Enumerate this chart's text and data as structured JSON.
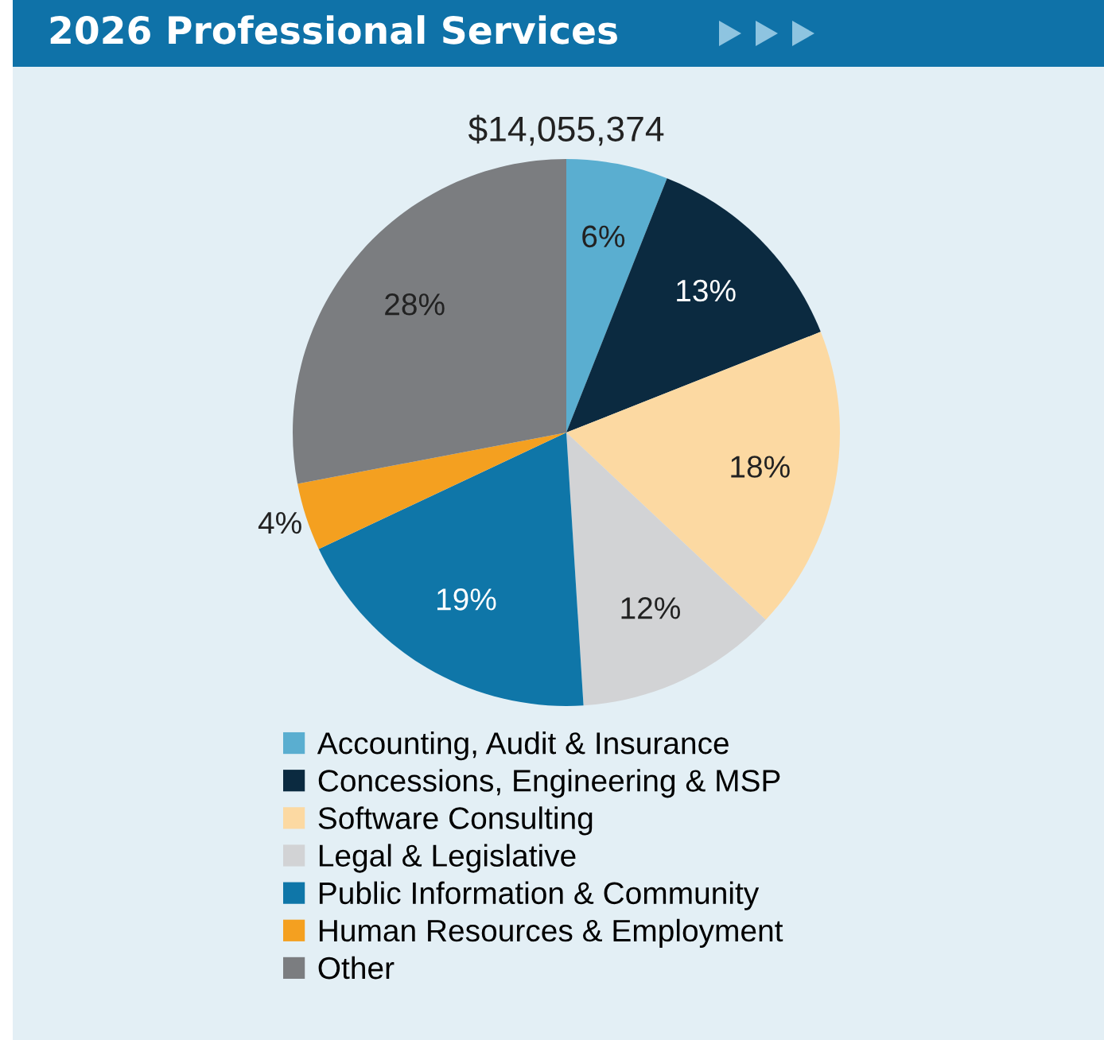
{
  "chart_data": {
    "type": "pie",
    "title": "2026 Professional Services",
    "subtitle": "$14,055,374",
    "categories": [
      "Accounting, Audit & Insurance",
      "Concessions, Engineering & MSP",
      "Software Consulting",
      "Legal & Legislative",
      "Public Information & Community",
      "Human Resources & Employment",
      "Other"
    ],
    "values": [
      6,
      13,
      18,
      12,
      19,
      4,
      28
    ],
    "colors": [
      "#5aaed0",
      "#0b2a40",
      "#fcd9a2",
      "#d2d3d5",
      "#0f76a8",
      "#f4a020",
      "#7b7d80"
    ],
    "value_labels": [
      "6%",
      "13%",
      "18%",
      "12%",
      "19%",
      "4%",
      "28%"
    ],
    "legend": "bottom"
  }
}
